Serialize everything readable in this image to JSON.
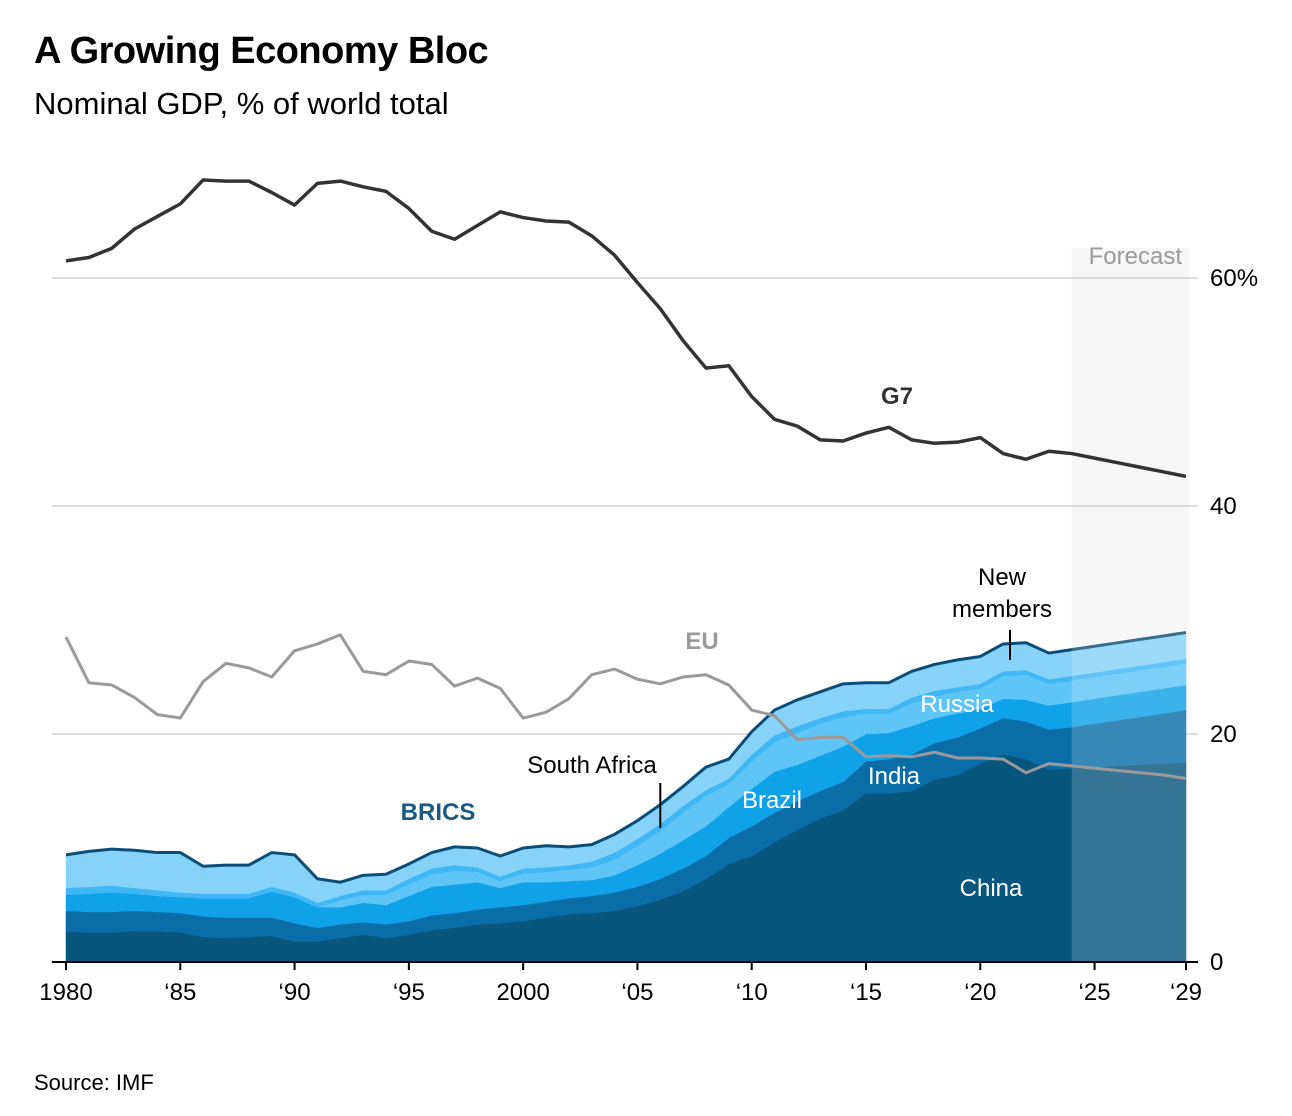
{
  "title": "A Growing Economy Bloc",
  "subtitle": "Nominal GDP, % of world total",
  "source": "Source: IMF",
  "colors": {
    "g7": "#333333",
    "eu": "#9a9a9a",
    "brics_label": "#1a5a85",
    "brics_outline": "#0a4d78",
    "china": "#08567e",
    "india": "#0b6da8",
    "brazil": "#0fa2e8",
    "russia": "#5fc5f7",
    "south_africa": "#3fb7f5",
    "new_members": "#86d2f8",
    "grid": "#cfcfcf",
    "forecast_band": "#ededed",
    "forecast_label": "#9a9a9a"
  },
  "chart_data": {
    "type": "area",
    "x": [
      1980,
      1981,
      1982,
      1983,
      1984,
      1985,
      1986,
      1987,
      1988,
      1989,
      1990,
      1991,
      1992,
      1993,
      1994,
      1995,
      1996,
      1997,
      1998,
      1999,
      2000,
      2001,
      2002,
      2003,
      2004,
      2005,
      2006,
      2007,
      2008,
      2009,
      2010,
      2011,
      2012,
      2013,
      2014,
      2015,
      2016,
      2017,
      2018,
      2019,
      2020,
      2021,
      2022,
      2023,
      2024,
      2025,
      2026,
      2027,
      2028,
      2029
    ],
    "xticks": [
      1980,
      1985,
      1990,
      1995,
      2000,
      2005,
      2010,
      2015,
      2020,
      2025,
      2029
    ],
    "xtick_labels": [
      "1980",
      "‘85",
      "‘90",
      "‘95",
      "2000",
      "‘05",
      "‘10",
      "‘15",
      "‘20",
      "‘25",
      "‘29"
    ],
    "ylim": [
      0,
      65
    ],
    "yticks": [
      0,
      20,
      40,
      60
    ],
    "ytick_labels": [
      "0",
      "20",
      "40",
      "60%"
    ],
    "forecast_start": 2024,
    "forecast_label": "Forecast",
    "lines": [
      {
        "name": "G7",
        "label": "G7",
        "values": [
          61.5,
          61.8,
          62.6,
          64.3,
          65.4,
          66.5,
          68.6,
          68.5,
          68.5,
          67.5,
          66.4,
          68.3,
          68.5,
          68.0,
          67.6,
          66.1,
          64.1,
          63.4,
          64.6,
          65.8,
          65.3,
          65.0,
          64.9,
          63.7,
          62.0,
          59.6,
          57.3,
          54.5,
          52.1,
          52.3,
          49.6,
          47.6,
          47.0,
          45.8,
          45.7,
          46.4,
          46.9,
          45.8,
          45.5,
          45.6,
          46.0,
          44.6,
          44.1,
          44.8,
          44.6,
          44.2,
          43.8,
          43.4,
          43.0,
          42.6
        ]
      },
      {
        "name": "EU",
        "label": "EU",
        "values": [
          28.5,
          24.5,
          24.3,
          23.2,
          21.7,
          21.4,
          24.6,
          26.2,
          25.8,
          25.0,
          27.3,
          27.9,
          28.7,
          25.5,
          25.2,
          26.4,
          26.1,
          24.2,
          24.9,
          24.0,
          21.4,
          21.9,
          23.1,
          25.2,
          25.7,
          24.8,
          24.4,
          25.0,
          25.2,
          24.3,
          22.1,
          21.6,
          19.5,
          19.7,
          19.7,
          18.0,
          18.1,
          18.0,
          18.4,
          17.9,
          17.9,
          17.8,
          16.6,
          17.4,
          17.2,
          17.0,
          16.8,
          16.6,
          16.4,
          16.1
        ]
      }
    ],
    "stacked_series": [
      {
        "name": "China",
        "label": "China",
        "values": [
          2.7,
          2.6,
          2.6,
          2.7,
          2.7,
          2.6,
          2.2,
          2.1,
          2.2,
          2.3,
          1.8,
          1.8,
          2.1,
          2.4,
          2.1,
          2.4,
          2.8,
          3.0,
          3.3,
          3.4,
          3.6,
          3.9,
          4.2,
          4.3,
          4.5,
          4.9,
          5.5,
          6.2,
          7.3,
          8.6,
          9.3,
          10.5,
          11.6,
          12.6,
          13.3,
          14.8,
          14.8,
          15.0,
          16.0,
          16.4,
          17.4,
          18.2,
          17.8,
          16.9,
          17.0,
          17.1,
          17.2,
          17.3,
          17.4,
          17.5
        ]
      },
      {
        "name": "India",
        "label": "India",
        "values": [
          1.8,
          1.8,
          1.8,
          1.8,
          1.7,
          1.7,
          1.8,
          1.8,
          1.7,
          1.6,
          1.6,
          1.2,
          1.2,
          1.1,
          1.2,
          1.2,
          1.3,
          1.3,
          1.3,
          1.4,
          1.4,
          1.4,
          1.4,
          1.5,
          1.6,
          1.7,
          1.8,
          2.0,
          2.0,
          2.3,
          2.6,
          2.6,
          2.5,
          2.4,
          2.5,
          2.8,
          3.0,
          3.2,
          3.2,
          3.3,
          3.1,
          3.2,
          3.3,
          3.5,
          3.6,
          3.8,
          4.0,
          4.2,
          4.4,
          4.6
        ]
      },
      {
        "name": "Brazil",
        "label": "Brazil",
        "values": [
          1.4,
          1.6,
          1.7,
          1.5,
          1.4,
          1.4,
          1.6,
          1.7,
          1.7,
          2.3,
          2.3,
          1.8,
          1.5,
          1.7,
          1.7,
          2.2,
          2.5,
          2.5,
          2.4,
          1.7,
          2.0,
          1.7,
          1.5,
          1.4,
          1.5,
          1.9,
          2.2,
          2.5,
          2.6,
          2.7,
          3.3,
          3.6,
          3.2,
          3.1,
          3.1,
          2.4,
          2.3,
          2.5,
          2.2,
          2.1,
          1.7,
          1.7,
          1.9,
          2.1,
          2.2,
          2.2,
          2.2,
          2.2,
          2.2,
          2.2
        ]
      },
      {
        "name": "Russia",
        "label": "Russia",
        "values": [
          0,
          0,
          0,
          0,
          0,
          0,
          0,
          0,
          0,
          0,
          0,
          0,
          0.6,
          0.7,
          0.9,
          1.0,
          1.1,
          1.2,
          0.9,
          0.6,
          0.8,
          0.9,
          1.0,
          1.1,
          1.4,
          1.7,
          2.0,
          2.4,
          2.7,
          2.0,
          2.4,
          2.6,
          2.8,
          2.8,
          2.6,
          1.8,
          1.7,
          2.0,
          1.9,
          1.9,
          1.8,
          2.0,
          2.2,
          1.9,
          1.9,
          1.9,
          1.9,
          1.9,
          1.9,
          1.9
        ]
      },
      {
        "name": "South Africa",
        "label": "South Africa",
        "values": [
          0.6,
          0.6,
          0.6,
          0.5,
          0.5,
          0.4,
          0.4,
          0.4,
          0.4,
          0.4,
          0.4,
          0.4,
          0.4,
          0.4,
          0.4,
          0.5,
          0.5,
          0.5,
          0.4,
          0.4,
          0.4,
          0.4,
          0.4,
          0.5,
          0.6,
          0.6,
          0.6,
          0.6,
          0.5,
          0.5,
          0.6,
          0.6,
          0.6,
          0.5,
          0.5,
          0.4,
          0.4,
          0.5,
          0.5,
          0.4,
          0.4,
          0.4,
          0.4,
          0.4,
          0.4,
          0.4,
          0.4,
          0.4,
          0.4,
          0.4
        ]
      },
      {
        "name": "New members",
        "label": "New members",
        "values": [
          2.9,
          3.1,
          3.2,
          3.3,
          3.3,
          3.5,
          2.4,
          2.5,
          2.5,
          3.0,
          3.3,
          2.1,
          1.2,
          1.3,
          1.4,
          1.3,
          1.4,
          1.6,
          1.7,
          1.8,
          1.8,
          1.9,
          1.6,
          1.5,
          1.6,
          1.6,
          1.7,
          1.7,
          2.0,
          1.7,
          2.0,
          2.2,
          2.3,
          2.3,
          2.4,
          2.3,
          2.3,
          2.3,
          2.3,
          2.4,
          2.4,
          2.4,
          2.4,
          2.3,
          2.3,
          2.3,
          2.3,
          2.3,
          2.3,
          2.3
        ]
      }
    ],
    "total_label": "BRICS",
    "annotations": [
      {
        "text": "South Africa",
        "x": 2006,
        "y": 13.2
      },
      {
        "text": "New members",
        "line1": "New",
        "line2": "members",
        "x": 2021.3,
        "y": 27.2
      }
    ]
  }
}
